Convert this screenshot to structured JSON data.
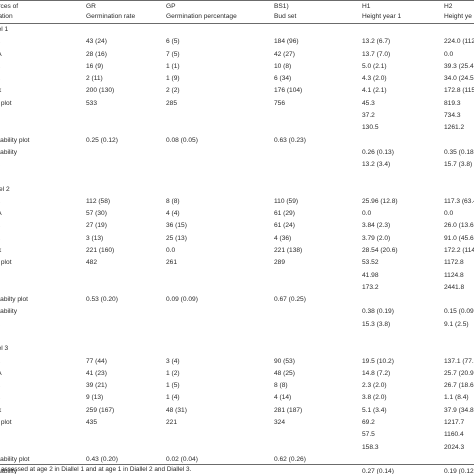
{
  "header": {
    "c0": [
      "ources of",
      "ariation"
    ],
    "c1": [
      "GR",
      "Germination rate"
    ],
    "c2": [
      "GP",
      "Germination percentage"
    ],
    "c3": [
      "BS1)",
      "Bud set"
    ],
    "c4": [
      "H1",
      "Height year 1"
    ],
    "c5": [
      "H2",
      "Height ye"
    ]
  },
  "sections": [
    {
      "title": "allel 1",
      "rows": [
        [
          "CA",
          "43 (24)",
          "6 (5)",
          "184 (96)",
          "13.2 (6.7)",
          "224.0 (112"
        ],
        [
          "iCA",
          "28 (16)",
          "7 (5)",
          "42 (27)",
          "13.7 (7.0)",
          "0.0"
        ],
        [
          "CA",
          "16 (9)",
          "1 (1)",
          "10 (8)",
          "5.0 (2.1)",
          "39.3 (25.4"
        ],
        [
          "CA",
          "2 (11)",
          "1 (9)",
          "6 (34)",
          "4.3 (2.0)",
          "34.0 (24.5"
        ],
        [
          "ock",
          "200 (130)",
          "2 (2)",
          "176 (104)",
          "4.1 (2.1)",
          "172.8 (115"
        ],
        [
          "ror plot",
          "533",
          "285",
          "756",
          "45.3",
          "819.3"
        ],
        [
          "ot",
          "",
          "",
          "",
          "37.2",
          "734.3"
        ],
        [
          "ror",
          "",
          "",
          "",
          "130.5",
          "1261.2"
        ],
        [
          "eritability plot",
          "0.25 (0.12)",
          "0.08 (0.05)",
          "0.63 (0.23)",
          "",
          ""
        ],
        [
          "eritability",
          "",
          "",
          "",
          "0.26 (0.13)",
          "0.35 (0.18"
        ],
        [
          "A",
          "",
          "",
          "",
          "13.2 (3.4)",
          "15.7 (3.8)"
        ]
      ]
    },
    {
      "title": "iallel 2",
      "rows": [
        [
          "CA",
          "112 (58)",
          "8 (8)",
          "110 (59)",
          "25.96 (12.8)",
          "117.3 (63.4"
        ],
        [
          "iCA",
          "57 (30)",
          "4 (4)",
          "61 (29)",
          "0.0",
          "0.0"
        ],
        [
          "CA",
          "27 (19)",
          "36 (15)",
          "61 (24)",
          "3.84 (2.3)",
          "26.0 (13.6"
        ],
        [
          "CA",
          "3 (13)",
          "25 (13)",
          "4 (36)",
          "3.79 (2.0)",
          "91.0 (45.6"
        ],
        [
          "ock",
          "221 (160)",
          "0.0",
          "221 (138)",
          "28.54 (20.6)",
          "172.2 (114"
        ],
        [
          "ror plot",
          "482",
          "261",
          "289",
          "53.52",
          "1172.8"
        ],
        [
          "ot",
          "",
          "",
          "",
          "41.98",
          "1124.8"
        ],
        [
          "ror",
          "",
          "",
          "",
          "173.2",
          "2441.8"
        ],
        [
          "eritabilty plot",
          "0.53 (0.20)",
          "0.09 (0.09)",
          "0.67 (0.25)",
          "",
          ""
        ],
        [
          "eritability",
          "",
          "",
          "",
          "0.38 (0.19)",
          "0.15 (0.09"
        ],
        [
          "A",
          "",
          "",
          "",
          "15.3 (3.8)",
          "9.1 (2.5)"
        ]
      ]
    },
    {
      "title": "allel 3",
      "rows": [
        [
          "CA",
          "77 (44)",
          "3 (4)",
          "90 (53)",
          "19.5 (10.2)",
          "137.1 (77.9"
        ],
        [
          "iCA",
          "41 (23)",
          "1 (2)",
          "48 (25)",
          "14.8 (7.2)",
          "25.7 (20.9"
        ],
        [
          "CA",
          "39 (21)",
          "1 (5)",
          "8 (8)",
          "2.3 (2.0)",
          "26.7 (18.6"
        ],
        [
          "CA",
          "9 (13)",
          "1 (4)",
          "4 (14)",
          "3.8 (2.0)",
          "1.1 (8.4)"
        ],
        [
          "ock",
          "259 (167)",
          "48 (31)",
          "281 (187)",
          "5.1 (3.4)",
          "37.9 (34.8"
        ],
        [
          "ror plot",
          "435",
          "221",
          "324",
          "69.2",
          "1217.7"
        ],
        [
          "ot",
          "",
          "",
          "",
          "57.5",
          "1160.4"
        ],
        [
          "ror",
          "",
          "",
          "",
          "158.3",
          "2024.3"
        ],
        [
          "eritability plot",
          "0.43 (0.20)",
          "0.02 (0.04)",
          "0.62 (0.26)",
          "",
          ""
        ],
        [
          "eritability",
          "",
          "",
          "",
          "0.27 (0.14)",
          "0.19 (0.12"
        ],
        [
          "A",
          "",
          "",
          "",
          "12.7 (3.3)",
          "11.8 (3.3)"
        ]
      ]
    }
  ],
  "footnote": ") assessed at age 2 in Diallel 1 and at age 1 in Diallel 2 and Diallel 3."
}
